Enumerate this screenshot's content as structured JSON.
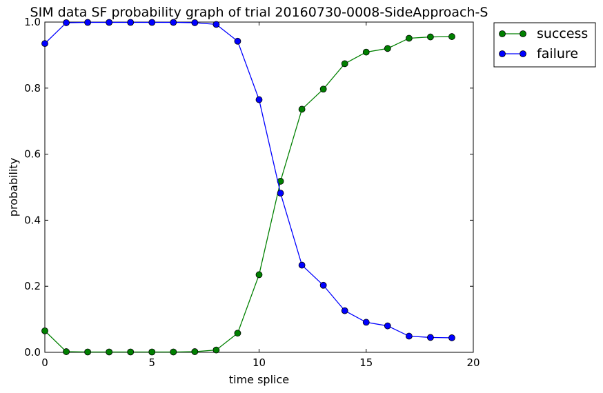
{
  "chart_data": {
    "type": "line",
    "title": "SIM data SF probability graph of trial 20160730-0008-SideApproach-S",
    "xlabel": "time splice",
    "ylabel": "probability",
    "xlim": [
      0,
      20
    ],
    "ylim": [
      0.0,
      1.0
    ],
    "xticks": [
      "0",
      "5",
      "10",
      "15",
      "20"
    ],
    "yticks": [
      "0.0",
      "0.2",
      "0.4",
      "0.6",
      "0.8",
      "1.0"
    ],
    "x": [
      0,
      1,
      2,
      3,
      4,
      5,
      6,
      7,
      8,
      9,
      10,
      11,
      12,
      13,
      14,
      15,
      16,
      17,
      18,
      19
    ],
    "series": [
      {
        "name": "success",
        "color": "#008000",
        "values": [
          0.065,
          0.002,
          0.001,
          0.001,
          0.001,
          0.001,
          0.001,
          0.002,
          0.007,
          0.058,
          0.235,
          0.518,
          0.736,
          0.797,
          0.874,
          0.909,
          0.92,
          0.951,
          0.955,
          0.956
        ]
      },
      {
        "name": "failure",
        "color": "#0000ff",
        "values": [
          0.935,
          0.998,
          0.999,
          0.999,
          0.999,
          0.999,
          0.999,
          0.998,
          0.993,
          0.942,
          0.765,
          0.482,
          0.264,
          0.203,
          0.126,
          0.091,
          0.08,
          0.049,
          0.045,
          0.044
        ]
      }
    ],
    "grid": false,
    "legend_position": "outside-top-right"
  }
}
